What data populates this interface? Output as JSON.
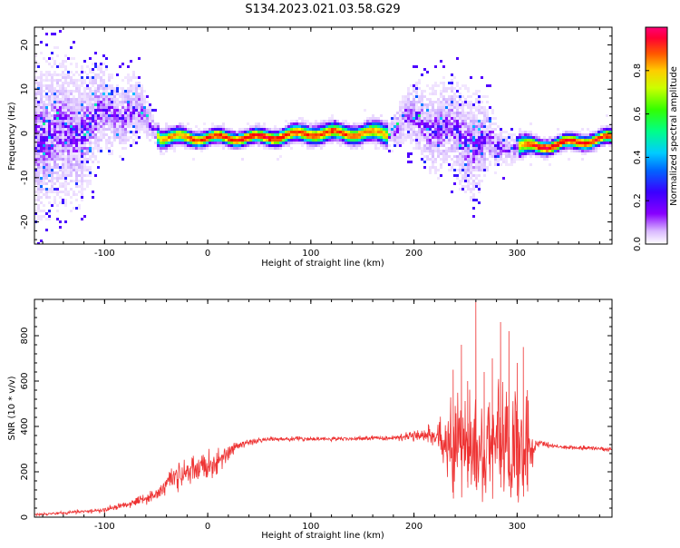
{
  "page_title": "S134.2023.021.03.58.G29",
  "colors": {
    "snr_line": "#ee3333",
    "colormap": [
      "#ffffff",
      "#ead8ff",
      "#c8a6ff",
      "#8800ff",
      "#4400ff",
      "#0066ff",
      "#00ccff",
      "#00ff88",
      "#66ff00",
      "#ffff00",
      "#ff8800",
      "#ff0000",
      "#ff0066"
    ]
  },
  "chart_data": [
    {
      "id": "spectrogram",
      "type": "heatmap",
      "title": "",
      "xlabel": "Height of straight line (km)",
      "ylabel": "Frequency (Hz)",
      "xlim": [
        -168,
        392
      ],
      "ylim": [
        -25,
        24
      ],
      "xticks": [
        -100,
        0,
        100,
        200,
        300
      ],
      "yticks": [
        -20,
        -10,
        0,
        10,
        20
      ],
      "colorbar": {
        "label": "Normalized spectral amplitude",
        "range": [
          0,
          1
        ],
        "ticks": [
          0.0,
          0.2,
          0.4,
          0.6,
          0.8
        ]
      },
      "ridge": [
        {
          "x": -168,
          "y": 0,
          "amp": 0.15,
          "spread": 9
        },
        {
          "x": -130,
          "y": 0,
          "amp": 0.2,
          "spread": 8
        },
        {
          "x": -110,
          "y": 3,
          "amp": 0.35,
          "spread": 6
        },
        {
          "x": -90,
          "y": 5,
          "amp": 0.4,
          "spread": 4
        },
        {
          "x": -70,
          "y": 5,
          "amp": 0.5,
          "spread": 4
        },
        {
          "x": -55,
          "y": 2,
          "amp": 0.6,
          "spread": 2
        },
        {
          "x": -45,
          "y": -1,
          "amp": 0.8,
          "spread": 1.2
        },
        {
          "x": 0,
          "y": -1,
          "amp": 0.9,
          "spread": 1
        },
        {
          "x": 50,
          "y": -1,
          "amp": 0.95,
          "spread": 1
        },
        {
          "x": 100,
          "y": 0,
          "amp": 0.9,
          "spread": 1.2
        },
        {
          "x": 150,
          "y": 0,
          "amp": 0.85,
          "spread": 1.2
        },
        {
          "x": 175,
          "y": 0,
          "amp": 0.8,
          "spread": 1.5
        },
        {
          "x": 190,
          "y": 3,
          "amp": 0.6,
          "spread": 3
        },
        {
          "x": 220,
          "y": 2,
          "amp": 0.4,
          "spread": 5
        },
        {
          "x": 260,
          "y": -2,
          "amp": 0.35,
          "spread": 6
        },
        {
          "x": 285,
          "y": -3,
          "amp": 0.6,
          "spread": 2
        },
        {
          "x": 320,
          "y": -3,
          "amp": 0.95,
          "spread": 1
        },
        {
          "x": 392,
          "y": -1,
          "amp": 0.9,
          "spread": 1
        }
      ]
    },
    {
      "id": "snr",
      "type": "line",
      "title": "",
      "xlabel": "Height of straight line (km)",
      "ylabel": "SNR (10 * v/v)",
      "xlim": [
        -168,
        392
      ],
      "ylim": [
        0,
        960
      ],
      "xticks": [
        -100,
        0,
        100,
        200,
        300
      ],
      "yticks": [
        0,
        200,
        400,
        600,
        800
      ],
      "envelope": [
        {
          "x": -168,
          "mean": 12,
          "noise": 6
        },
        {
          "x": -100,
          "mean": 30,
          "noise": 15
        },
        {
          "x": -70,
          "mean": 70,
          "noise": 25
        },
        {
          "x": -50,
          "mean": 100,
          "noise": 40
        },
        {
          "x": -35,
          "mean": 170,
          "noise": 70
        },
        {
          "x": -20,
          "mean": 200,
          "noise": 80
        },
        {
          "x": 10,
          "mean": 240,
          "noise": 70
        },
        {
          "x": 30,
          "mean": 320,
          "noise": 25
        },
        {
          "x": 60,
          "mean": 345,
          "noise": 12
        },
        {
          "x": 130,
          "mean": 345,
          "noise": 12
        },
        {
          "x": 180,
          "mean": 350,
          "noise": 15
        },
        {
          "x": 215,
          "mean": 370,
          "noise": 40
        },
        {
          "x": 230,
          "mean": 320,
          "noise": 170
        },
        {
          "x": 260,
          "mean": 300,
          "noise": 280
        },
        {
          "x": 290,
          "mean": 290,
          "noise": 270
        },
        {
          "x": 312,
          "mean": 290,
          "noise": 250
        },
        {
          "x": 318,
          "mean": 330,
          "noise": 25
        },
        {
          "x": 340,
          "mean": 310,
          "noise": 12
        },
        {
          "x": 392,
          "mean": 300,
          "noise": 12
        }
      ],
      "spikes": [
        {
          "x": 238,
          "y": 650
        },
        {
          "x": 246,
          "y": 760
        },
        {
          "x": 252,
          "y": 600
        },
        {
          "x": 260,
          "y": 955
        },
        {
          "x": 268,
          "y": 640
        },
        {
          "x": 276,
          "y": 700
        },
        {
          "x": 284,
          "y": 860
        },
        {
          "x": 292,
          "y": 820
        },
        {
          "x": 300,
          "y": 680
        },
        {
          "x": 306,
          "y": 750
        },
        {
          "x": 310,
          "y": 560
        }
      ]
    }
  ]
}
